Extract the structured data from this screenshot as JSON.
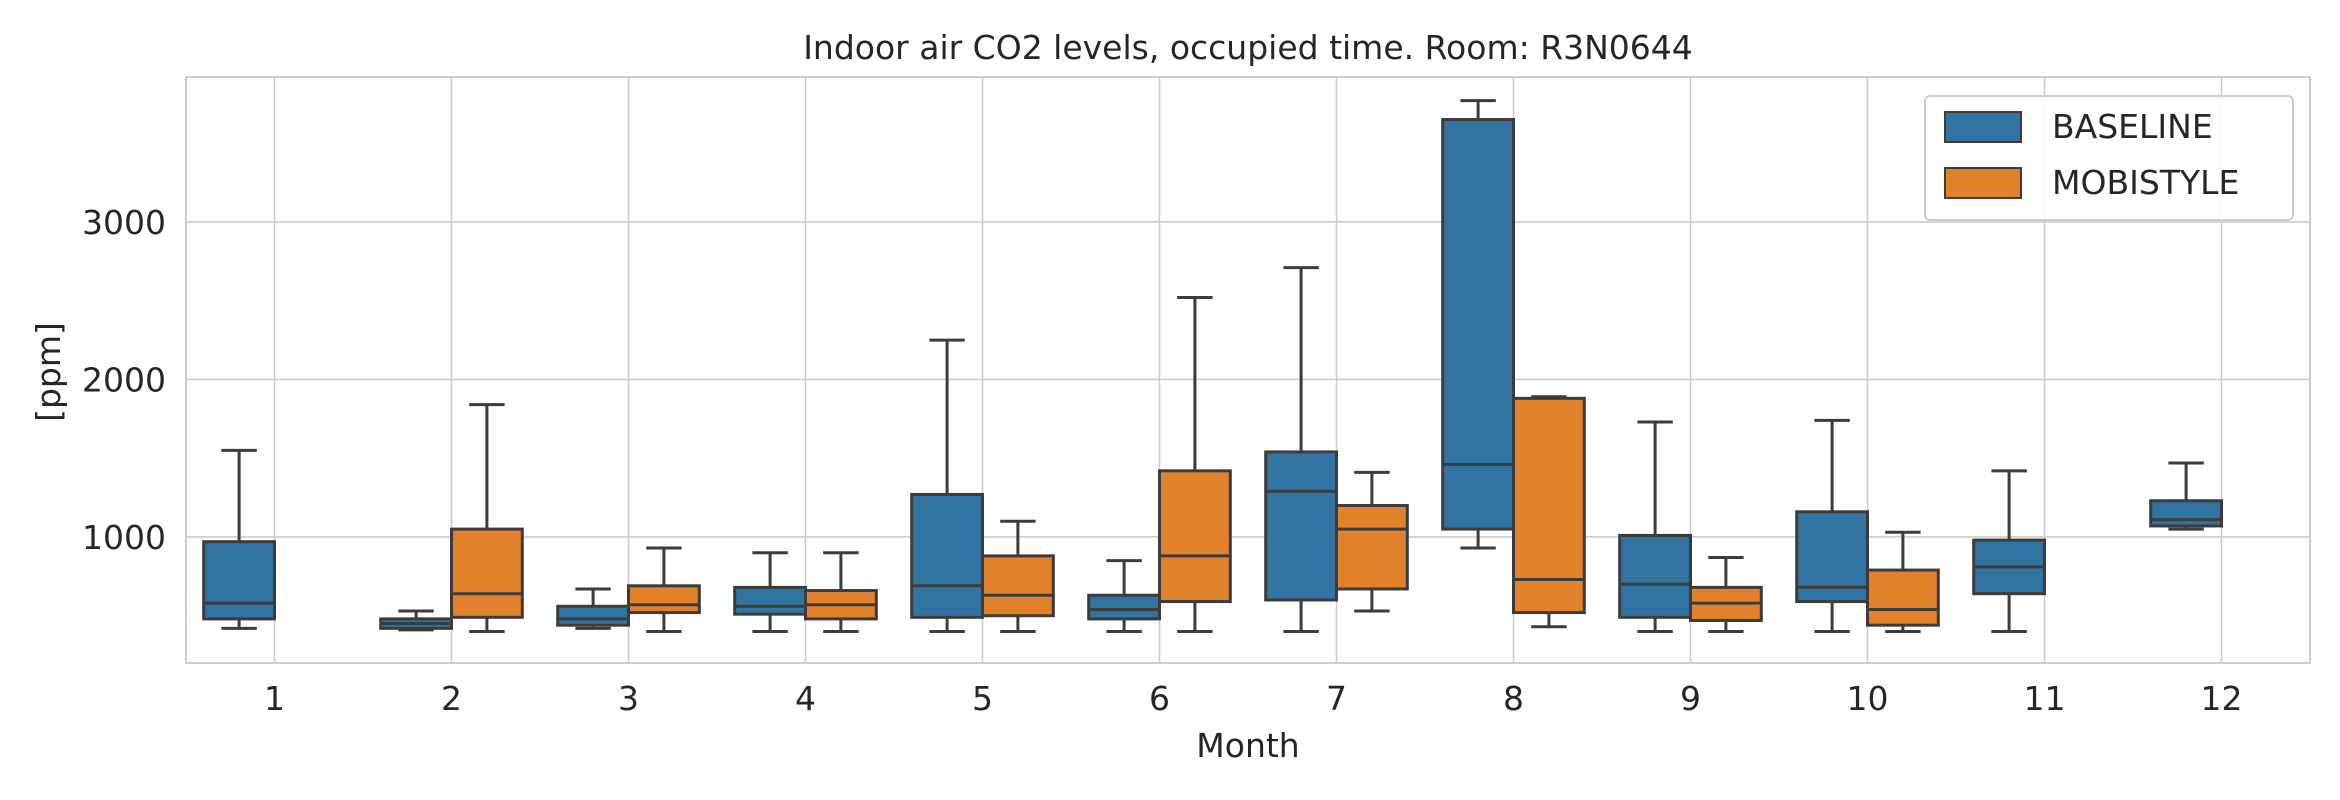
{
  "chart_data": {
    "type": "boxplot",
    "title": "Indoor air CO2 levels, occupied time. Room: R3N0644",
    "xlabel": "Month",
    "ylabel": "[ppm]",
    "categories": [
      "1",
      "2",
      "3",
      "4",
      "5",
      "6",
      "7",
      "8",
      "9",
      "10",
      "11",
      "12"
    ],
    "y_ticks": [
      1000,
      2000,
      3000
    ],
    "ylim": [
      200,
      3920
    ],
    "grid": true,
    "legend_position": "top-right",
    "series": [
      {
        "name": "BASELINE",
        "color": "#3274a1",
        "boxes": [
          {
            "whislo": 420,
            "q1": 480,
            "med": 580,
            "q3": 970,
            "whishi": 1550
          },
          {
            "whislo": 410,
            "q1": 420,
            "med": 450,
            "q3": 480,
            "whishi": 530
          },
          {
            "whislo": 420,
            "q1": 440,
            "med": 480,
            "q3": 560,
            "whishi": 670
          },
          {
            "whislo": 400,
            "q1": 510,
            "med": 560,
            "q3": 680,
            "whishi": 900
          },
          {
            "whislo": 400,
            "q1": 490,
            "med": 690,
            "q3": 1270,
            "whishi": 2250
          },
          {
            "whislo": 400,
            "q1": 480,
            "med": 540,
            "q3": 630,
            "whishi": 850
          },
          {
            "whislo": 400,
            "q1": 600,
            "med": 1290,
            "q3": 1540,
            "whishi": 2710
          },
          {
            "whislo": 930,
            "q1": 1050,
            "med": 1460,
            "q3": 3650,
            "whishi": 3770
          },
          {
            "whislo": 400,
            "q1": 490,
            "med": 700,
            "q3": 1010,
            "whishi": 1730
          },
          {
            "whislo": 400,
            "q1": 590,
            "med": 680,
            "q3": 1160,
            "whishi": 1740
          },
          {
            "whislo": 400,
            "q1": 640,
            "med": 810,
            "q3": 980,
            "whishi": 1420
          },
          {
            "whislo": 1050,
            "q1": 1070,
            "med": 1110,
            "q3": 1230,
            "whishi": 1470
          }
        ]
      },
      {
        "name": "MOBISTYLE",
        "color": "#e1812c",
        "boxes": [
          null,
          {
            "whislo": 400,
            "q1": 490,
            "med": 640,
            "q3": 1050,
            "whishi": 1840
          },
          {
            "whislo": 400,
            "q1": 520,
            "med": 570,
            "q3": 690,
            "whishi": 930
          },
          {
            "whislo": 400,
            "q1": 480,
            "med": 570,
            "q3": 660,
            "whishi": 900
          },
          {
            "whislo": 400,
            "q1": 500,
            "med": 630,
            "q3": 880,
            "whishi": 1100
          },
          {
            "whislo": 400,
            "q1": 590,
            "med": 880,
            "q3": 1420,
            "whishi": 2520
          },
          {
            "whislo": 530,
            "q1": 670,
            "med": 1050,
            "q3": 1200,
            "whishi": 1410
          },
          {
            "whislo": 430,
            "q1": 520,
            "med": 730,
            "q3": 1880,
            "whishi": 1890
          },
          {
            "whislo": 400,
            "q1": 470,
            "med": 580,
            "q3": 680,
            "whishi": 870
          },
          {
            "whislo": 400,
            "q1": 440,
            "med": 540,
            "q3": 790,
            "whishi": 1030
          },
          null,
          null
        ]
      }
    ]
  }
}
